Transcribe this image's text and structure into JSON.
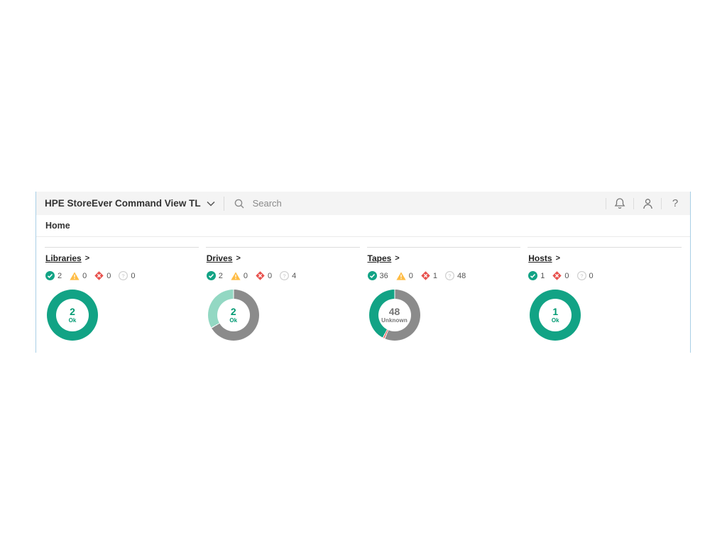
{
  "header": {
    "app_title": "HPE StoreEver Command View TL",
    "chevron_icon": "chevron-down-icon",
    "search_icon": "search-icon",
    "search_placeholder": "Search",
    "right_icons": [
      "bell-icon",
      "user-icon",
      "help-icon"
    ],
    "help_glyph": "?"
  },
  "breadcrumb": {
    "home": "Home"
  },
  "colors": {
    "brand_green": "#12a385",
    "mint_green": "#93d8c3",
    "neutral_gray": "#8b8b8b",
    "warning_yellow": "#ffbc44",
    "critical_red": "#e8514d",
    "unknown_ring_stroke": "#cfcfcf",
    "ok_text_green": "#019a72",
    "unknown_text_gray": "#757575",
    "topbar_bg": "#f4f4f4",
    "window_border_blue": "#a9cfe6"
  },
  "panels": [
    {
      "id": "libraries",
      "title": "Libraries",
      "arrow": ">",
      "statuses": [
        {
          "type": "ok",
          "count": "2"
        },
        {
          "type": "warning",
          "count": "0"
        },
        {
          "type": "critical",
          "count": "0"
        },
        {
          "type": "unknown",
          "count": "0"
        }
      ],
      "donut": {
        "type": "donut",
        "center_value": "2",
        "center_label": "Ok",
        "center_style": "ok",
        "segments": [
          {
            "status": "ok",
            "value": 2
          }
        ],
        "total": 2
      }
    },
    {
      "id": "drives",
      "title": "Drives",
      "arrow": ">",
      "statuses": [
        {
          "type": "ok",
          "count": "2"
        },
        {
          "type": "warning",
          "count": "0"
        },
        {
          "type": "critical",
          "count": "0"
        },
        {
          "type": "unknown",
          "count": "4"
        }
      ],
      "donut": {
        "type": "donut",
        "center_value": "2",
        "center_label": "Ok",
        "center_style": "ok",
        "segments": [
          {
            "status": "unknown",
            "value": 4
          },
          {
            "status": "ok_light",
            "value": 2
          }
        ],
        "total": 6
      }
    },
    {
      "id": "tapes",
      "title": "Tapes",
      "arrow": ">",
      "statuses": [
        {
          "type": "ok",
          "count": "36"
        },
        {
          "type": "warning",
          "count": "0"
        },
        {
          "type": "critical",
          "count": "1"
        },
        {
          "type": "unknown",
          "count": "48"
        }
      ],
      "donut": {
        "type": "donut",
        "center_value": "48",
        "center_label": "Unknown",
        "center_style": "unknown",
        "segments": [
          {
            "status": "unknown",
            "value": 48
          },
          {
            "status": "critical",
            "value": 1
          },
          {
            "status": "ok",
            "value": 36
          }
        ],
        "total": 85
      }
    },
    {
      "id": "hosts",
      "title": "Hosts",
      "arrow": ">",
      "statuses": [
        {
          "type": "ok",
          "count": "1"
        },
        {
          "type": "critical",
          "count": "0"
        },
        {
          "type": "unknown",
          "count": "0"
        }
      ],
      "donut": {
        "type": "donut",
        "center_value": "1",
        "center_label": "Ok",
        "center_style": "ok",
        "segments": [
          {
            "status": "ok",
            "value": 1
          }
        ],
        "total": 1
      }
    }
  ]
}
